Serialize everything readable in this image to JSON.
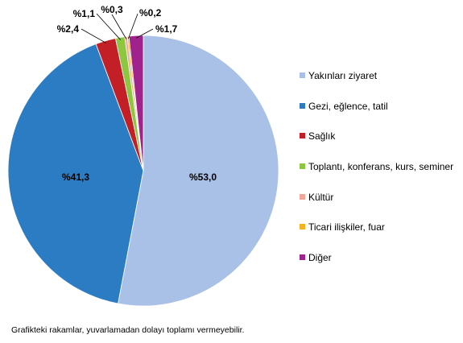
{
  "chart_data": {
    "type": "pie",
    "categories": [
      "Yakınları ziyaret",
      "Gezi, eğlence, tatil",
      "Sağlık",
      "Toplantı, konferans, kurs, seminer",
      "Kültür",
      "Ticari ilişkiler, fuar",
      "Diğer"
    ],
    "values": [
      53.0,
      41.3,
      2.4,
      1.1,
      0.3,
      0.2,
      1.7
    ],
    "labels": [
      "%53,0",
      "%41,3",
      "%2,4",
      "%1,1",
      "%0,3",
      "%0,2",
      "%1,7"
    ],
    "colors": [
      "#a9c1e6",
      "#2c7cc3",
      "#c21f26",
      "#8dc63f",
      "#f2a69a",
      "#f6b221",
      "#a0238d"
    ],
    "legend_position": "right"
  },
  "note": "Grafikteki rakamlar, yuvarlamadan dolayı toplamı vermeyebilir."
}
